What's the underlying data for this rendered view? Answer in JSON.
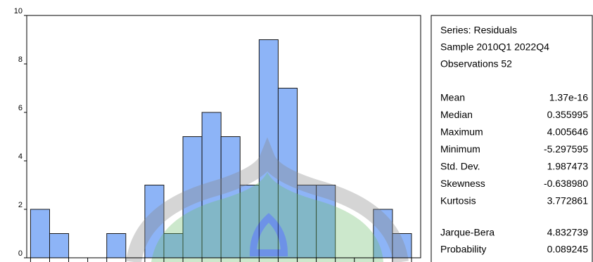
{
  "chart_data": {
    "type": "histogram",
    "bins": [
      -5.5,
      -5.0,
      -4.5,
      -4.0,
      -3.5,
      -3.0,
      -2.5,
      -2.0,
      -1.5,
      -1.0,
      -0.5,
      0.0,
      0.5,
      1.0,
      1.5,
      2.0,
      2.5,
      3.0,
      3.5,
      4.0,
      4.5
    ],
    "values": [
      2,
      1,
      0,
      0,
      1,
      0,
      3,
      1,
      5,
      6,
      5,
      3,
      9,
      7,
      3,
      3,
      0,
      0,
      2,
      1
    ],
    "color": "#8db4f7",
    "xlim": [
      -5.6,
      4.74
    ],
    "ylim": [
      0,
      10
    ],
    "yticks": [
      0,
      2,
      4,
      6,
      8,
      10
    ],
    "grid": false
  },
  "stats_panel": {
    "header": [
      "Series: Residuals",
      "Sample 2010Q1 2022Q4",
      "Observations 52"
    ],
    "rows": [
      [
        "Mean",
        "1.37e-16"
      ],
      [
        "Median",
        "0.355995"
      ],
      [
        "Maximum",
        "4.005646"
      ],
      [
        "Minimum",
        "-5.297595"
      ],
      [
        "Std. Dev.",
        "1.987473"
      ],
      [
        "Skewness",
        "-0.638980"
      ],
      [
        "Kurtosis",
        "3.772861"
      ]
    ],
    "test_rows": [
      [
        "Jarque-Bera",
        "4.832739"
      ],
      [
        "Probability",
        "0.089245"
      ]
    ]
  }
}
